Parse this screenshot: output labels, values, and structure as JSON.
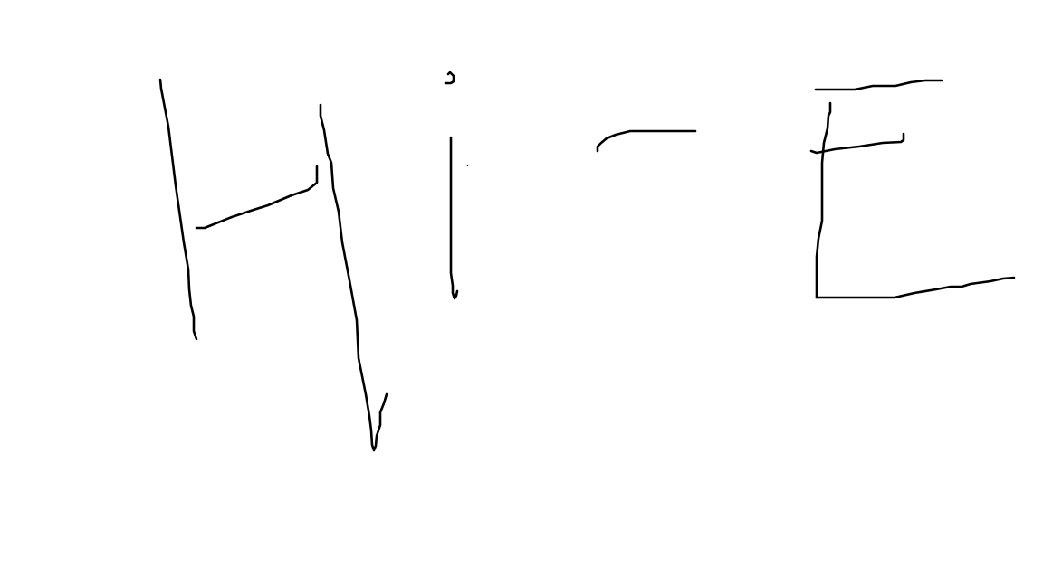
{
  "canvas": {
    "background_color": "#ffffff",
    "ink_color": "#000000"
  },
  "drawing": {
    "handwritten_text": "Hi E",
    "stroke_count": 13
  }
}
